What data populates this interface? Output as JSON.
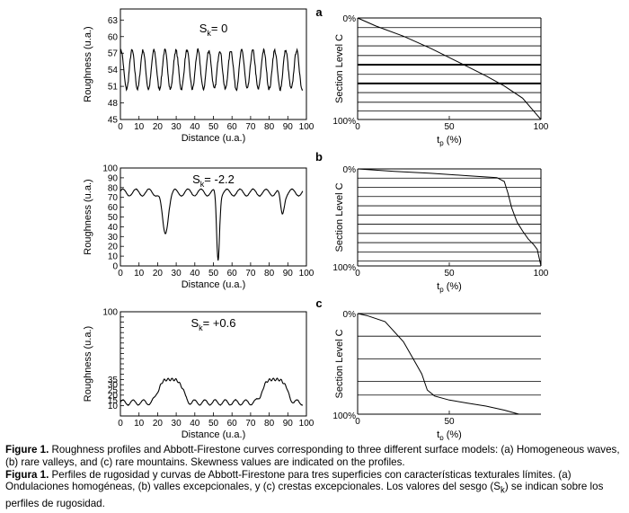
{
  "profile_y_label": "Roughness (u.a.)",
  "profile_x_label": "Distance (u.a.)",
  "af_y_label": "Section Level C",
  "af_x_label_main": "t",
  "af_x_label_sub": "p",
  "af_x_label_unit": " (%)",
  "panel_letters": [
    "a",
    "b",
    "c"
  ],
  "chart_data": [
    {
      "type": "line",
      "panel": "a",
      "role": "roughness-profile",
      "annotation": {
        "prefix": "S",
        "sub": "k",
        "text": "= 0"
      },
      "xlabel": "Distance (u.a.)",
      "ylabel": "Roughness (u.a.)",
      "xlim": [
        0,
        100
      ],
      "ylim": [
        45,
        65
      ],
      "xticks": [
        0,
        10,
        20,
        30,
        40,
        50,
        60,
        70,
        80,
        90,
        100
      ],
      "yticks": [
        45,
        48,
        51,
        54,
        57,
        60,
        63
      ],
      "wave": {
        "kind": "sine",
        "baseline": 54,
        "amplitude": 3.5,
        "period": 5.9,
        "phase": 1.2,
        "noise": 0.6
      },
      "x_range": [
        0,
        98
      ]
    },
    {
      "type": "line",
      "panel": "a",
      "role": "abbott-firestone",
      "xlabel": "tp (%)",
      "ylabel": "Section Level C",
      "xlim": [
        0,
        100
      ],
      "ylim": [
        0,
        100
      ],
      "xticks": [
        0,
        50,
        100
      ],
      "yticks": [
        "0%",
        "100%"
      ],
      "section_lines": [
        9.5,
        18.5,
        27.5,
        37,
        46,
        55.5,
        64.5,
        73.5,
        83,
        91.5
      ],
      "thick_section_lines": [
        46,
        64.5
      ],
      "x": [
        0,
        10,
        25,
        40,
        50,
        60,
        70,
        80,
        90,
        100
      ],
      "y": [
        0,
        8,
        18,
        30,
        39,
        48,
        57,
        67,
        79,
        100
      ]
    },
    {
      "type": "line",
      "panel": "b",
      "role": "roughness-profile",
      "annotation": {
        "prefix": "S",
        "sub": "k",
        "text": "= -2.2"
      },
      "xlabel": "Distance (u.a.)",
      "ylabel": "Roughness (u.a.)",
      "xlim": [
        0,
        100
      ],
      "ylim": [
        0,
        100
      ],
      "xticks": [
        0,
        10,
        20,
        30,
        40,
        50,
        60,
        70,
        80,
        90,
        100
      ],
      "yticks": [
        0,
        10,
        20,
        30,
        40,
        50,
        60,
        70,
        80,
        90,
        100
      ],
      "wave": {
        "kind": "sine",
        "baseline": 75,
        "amplitude": 3.5,
        "period": 7,
        "phase": 0.4,
        "noise": 0.5
      },
      "dips": [
        {
          "center": 24,
          "depth": 42,
          "width": 2.2
        },
        {
          "center": 52.5,
          "depth": 68,
          "width": 1.1
        },
        {
          "center": 87,
          "depth": 22,
          "width": 1.4
        }
      ],
      "x_range": [
        0,
        98
      ]
    },
    {
      "type": "line",
      "panel": "b",
      "role": "abbott-firestone",
      "xlabel": "tp (%)",
      "ylabel": "Section Level C",
      "xlim": [
        0,
        100
      ],
      "ylim": [
        0,
        100
      ],
      "xticks": [
        0,
        50,
        100
      ],
      "yticks": [
        "0%",
        "100%"
      ],
      "section_lines": [
        9.5,
        19,
        28.5,
        38,
        47.5,
        57,
        66.5,
        76,
        85.5,
        95
      ],
      "x": [
        0,
        20,
        40,
        60,
        76,
        80,
        82,
        84,
        87,
        90,
        93,
        96,
        98,
        100
      ],
      "y": [
        0,
        2.5,
        4.5,
        7,
        9,
        13,
        25,
        40,
        55,
        64,
        72,
        78,
        83,
        100
      ]
    },
    {
      "type": "line",
      "panel": "c",
      "role": "roughness-profile",
      "annotation": {
        "prefix": "S",
        "sub": "k",
        "text": "= +0.6"
      },
      "xlabel": "Distance (u.a.)",
      "ylabel": "Roughness (u.a.)",
      "xlim": [
        0,
        100
      ],
      "ylim": [
        0,
        100
      ],
      "xticks": [
        0,
        10,
        20,
        30,
        40,
        50,
        60,
        70,
        80,
        90,
        100
      ],
      "yticks": [
        10,
        15,
        20,
        25,
        30,
        35,
        40,
        45,
        50,
        55,
        60,
        65,
        70,
        75,
        80,
        85,
        90,
        95,
        100
      ],
      "ytick_labels": [
        "10",
        "15",
        "20",
        "25",
        "30",
        "35",
        "100"
      ],
      "wave": {
        "kind": "sine",
        "baseline": 13,
        "amplitude": 2.5,
        "period": 5.5,
        "phase": 0,
        "noise": 0.5
      },
      "humps": [
        {
          "center": 27,
          "height": 22,
          "width": 7.5
        },
        {
          "center": 83,
          "height": 22,
          "width": 7.5
        }
      ],
      "x_range": [
        0,
        98
      ]
    },
    {
      "type": "line",
      "panel": "c",
      "role": "abbott-firestone",
      "xlabel": "tp (%)",
      "ylabel": "Section Level C",
      "xlim": [
        0,
        100
      ],
      "ylim": [
        0,
        100
      ],
      "xticks": [
        0,
        50
      ],
      "yticks": [
        "0%",
        "100%"
      ],
      "section_lines": [
        22.5,
        45,
        67.5,
        81
      ],
      "x": [
        0,
        5,
        15,
        25,
        30,
        35,
        38,
        42,
        50,
        60,
        70,
        80,
        88
      ],
      "y": [
        0,
        2,
        8,
        28,
        44,
        60,
        76,
        82,
        86,
        89,
        92,
        96,
        100
      ]
    }
  ],
  "caption": {
    "en_label": "Figure 1.",
    "en_text_1": " Roughness profiles and Abbott-Firestone curves corresponding to three different surface models: (a) Homogeneous waves, (b) rare valleys, and (c) rare mountains. Skewness values are indicated on the profiles.",
    "es_label": "Figura 1.",
    "es_text_1": " Perfiles de rugosidad y curvas de Abbott-Firestone para tres superficies con características texturales límites. (a) Ondulaciones homogéneas, (b) valles excepcionales, y (c) crestas excepcionales.  Los valores del sesgo (S",
    "es_sub": "k",
    "es_text_2": ") se indican sobre los perfiles de rugosidad."
  }
}
